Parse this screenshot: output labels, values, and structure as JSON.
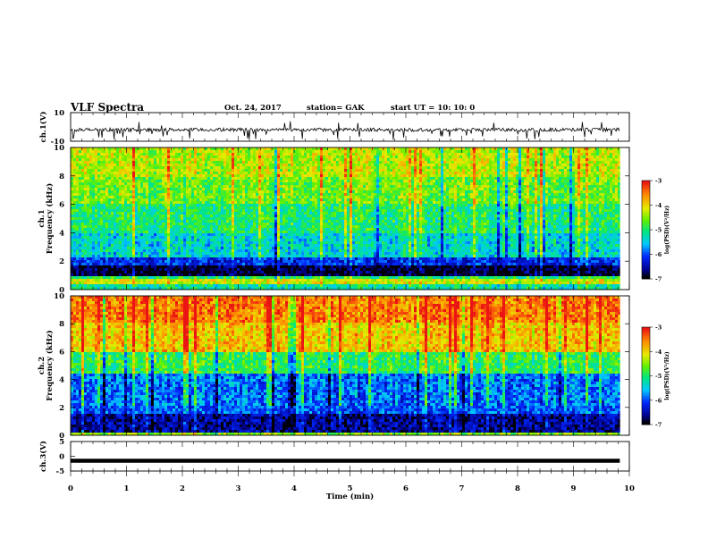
{
  "header": {
    "title": "VLF Spectra",
    "date": "Oct. 24, 2017",
    "station": "station= GAK",
    "start_ut": "start  UT  =   10: 10: 0"
  },
  "colorbar_labels": {
    "ticks": [
      "-3",
      "-4",
      "-5",
      "-6",
      "-7"
    ],
    "label": "log(PSD)(V²/Hz)"
  },
  "chart_data": [
    {
      "type": "line",
      "title": "",
      "xlabel": "",
      "ylabel": "ch.1(V)",
      "xlim": [
        0,
        10
      ],
      "ylim": [
        -10,
        10
      ],
      "yticks": [
        10,
        -10
      ],
      "baseline": -2,
      "data_end_min": 9.83,
      "description_series": [
        {
          "name": "ch.1",
          "note": "noisy waveform centred near -2 V with spikes to about -8 V"
        }
      ]
    },
    {
      "type": "heatmap",
      "title": "",
      "xlabel": "",
      "ylabel": "ch.1\nFrequency (kHz)",
      "xlim": [
        0,
        10
      ],
      "ylim": [
        0,
        10
      ],
      "yticks": [
        0,
        2,
        4,
        6,
        8,
        10
      ],
      "data_end_min": 9.83,
      "colorbar": {
        "min": -7,
        "max": -3,
        "ticks": [
          -3,
          -4,
          -5,
          -6,
          -7
        ],
        "label": "log(PSD)(V²/Hz)"
      },
      "bands": [
        {
          "freq_khz": [
            0,
            0.3
          ],
          "log_psd": -5.2
        },
        {
          "freq_khz": [
            0.3,
            0.7
          ],
          "log_psd": -4.2
        },
        {
          "freq_khz": [
            0.7,
            1.0
          ],
          "log_psd": -5.0
        },
        {
          "freq_khz": [
            1.0,
            1.7
          ],
          "log_psd": -6.9
        },
        {
          "freq_khz": [
            1.7,
            2.2
          ],
          "log_psd": -6.2
        },
        {
          "freq_khz": [
            2.2,
            4.0
          ],
          "log_psd": -5.4
        },
        {
          "freq_khz": [
            4.0,
            6.0
          ],
          "log_psd": -5.0
        },
        {
          "freq_khz": [
            6.0,
            8.0
          ],
          "log_psd": -4.6
        },
        {
          "freq_khz": [
            8.0,
            10.0
          ],
          "log_psd": -4.3
        }
      ]
    },
    {
      "type": "heatmap",
      "title": "",
      "xlabel": "",
      "ylabel": "ch.2\nFrequency (kHz)",
      "xlim": [
        0,
        10
      ],
      "ylim": [
        0,
        10
      ],
      "yticks": [
        0,
        2,
        4,
        6,
        8,
        10
      ],
      "data_end_min": 9.83,
      "colorbar": {
        "min": -7,
        "max": -3,
        "ticks": [
          -3,
          -4,
          -5,
          -6,
          -7
        ],
        "label": "log(PSD)(V²/Hz)"
      },
      "bands": [
        {
          "freq_khz": [
            0,
            0.2
          ],
          "log_psd": -4.5
        },
        {
          "freq_khz": [
            0.2,
            1.5
          ],
          "log_psd": -6.6
        },
        {
          "freq_khz": [
            1.5,
            2.2
          ],
          "log_psd": -6.0
        },
        {
          "freq_khz": [
            2.2,
            4.5
          ],
          "log_psd": -5.9
        },
        {
          "freq_khz": [
            4.5,
            6.0
          ],
          "log_psd": -4.9
        },
        {
          "freq_khz": [
            6.0,
            8.0
          ],
          "log_psd": -3.9
        },
        {
          "freq_khz": [
            8.0,
            10.0
          ],
          "log_psd": -3.5
        }
      ]
    },
    {
      "type": "line",
      "title": "",
      "xlabel": "Time (min)",
      "ylabel": "ch.3(V)",
      "xlim": [
        0,
        10
      ],
      "ylim": [
        -5,
        5
      ],
      "yticks": [
        5,
        0,
        -5
      ],
      "xticks": [
        0,
        1,
        2,
        3,
        4,
        5,
        6,
        7,
        8,
        9,
        10
      ],
      "data_end_min": 9.83,
      "series": [
        {
          "name": "ch.3",
          "values": [
            -1.5,
            -1.5
          ]
        }
      ]
    }
  ]
}
